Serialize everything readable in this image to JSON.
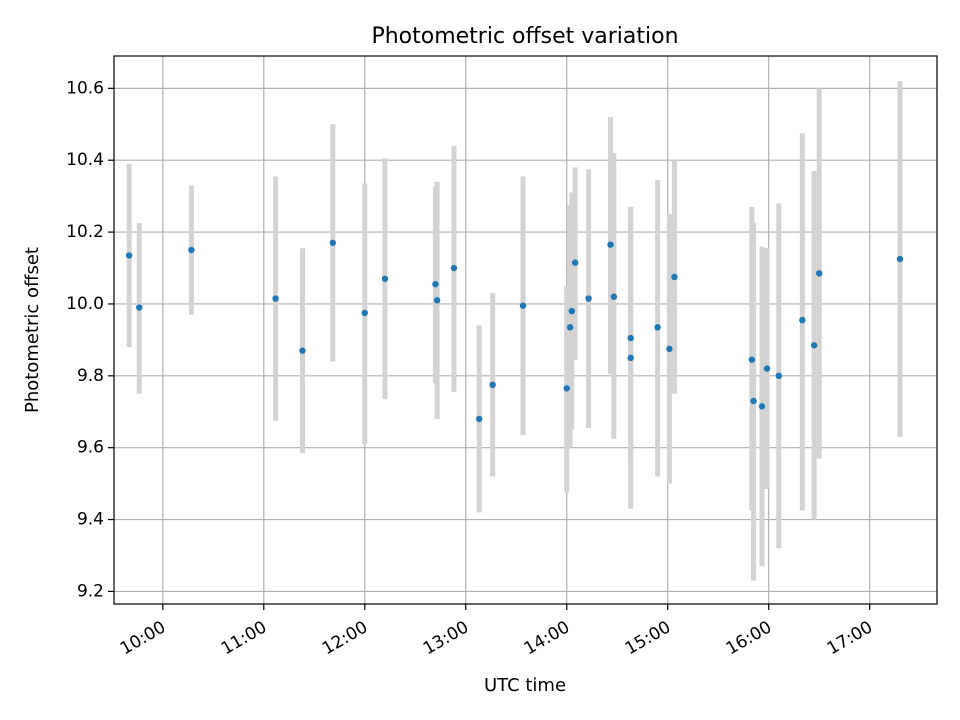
{
  "chart_data": {
    "type": "scatter",
    "title": "Photometric offset variation",
    "xlabel": "UTC time",
    "ylabel": "Photometric offset",
    "xlim": [
      "09:31",
      "17:40"
    ],
    "ylim": [
      9.165,
      10.69
    ],
    "x_ticks": [
      "10:00",
      "11:00",
      "12:00",
      "13:00",
      "14:00",
      "15:00",
      "16:00",
      "17:00"
    ],
    "y_ticks": [
      "9.2",
      "9.4",
      "9.6",
      "9.8",
      "10.0",
      "10.2",
      "10.4",
      "10.6"
    ],
    "grid": true,
    "colors": {
      "point": "#1f77b4",
      "errorbar": "#d3d3d3"
    },
    "points": [
      {
        "x": "09:40",
        "y": 10.135,
        "yerr_low": 9.88,
        "yerr_high": 10.39
      },
      {
        "x": "09:46",
        "y": 9.99,
        "yerr_low": 9.75,
        "yerr_high": 10.225
      },
      {
        "x": "10:17",
        "y": 10.15,
        "yerr_low": 9.97,
        "yerr_high": 10.33
      },
      {
        "x": "11:07",
        "y": 10.015,
        "yerr_low": 9.675,
        "yerr_high": 10.355
      },
      {
        "x": "11:23",
        "y": 9.87,
        "yerr_low": 9.585,
        "yerr_high": 10.155
      },
      {
        "x": "11:41",
        "y": 10.17,
        "yerr_low": 9.84,
        "yerr_high": 10.5
      },
      {
        "x": "12:00",
        "y": 9.975,
        "yerr_low": 9.61,
        "yerr_high": 10.335
      },
      {
        "x": "12:12",
        "y": 10.07,
        "yerr_low": 9.735,
        "yerr_high": 10.405
      },
      {
        "x": "12:42",
        "y": 10.055,
        "yerr_low": 9.78,
        "yerr_high": 10.325
      },
      {
        "x": "12:43",
        "y": 10.01,
        "yerr_low": 9.68,
        "yerr_high": 10.34
      },
      {
        "x": "12:53",
        "y": 10.1,
        "yerr_low": 9.755,
        "yerr_high": 10.44
      },
      {
        "x": "13:08",
        "y": 9.68,
        "yerr_low": 9.42,
        "yerr_high": 9.94
      },
      {
        "x": "13:16",
        "y": 9.775,
        "yerr_low": 9.52,
        "yerr_high": 10.03
      },
      {
        "x": "13:34",
        "y": 9.995,
        "yerr_low": 9.635,
        "yerr_high": 10.355
      },
      {
        "x": "14:00",
        "y": 9.765,
        "yerr_low": 9.475,
        "yerr_high": 10.05
      },
      {
        "x": "14:02",
        "y": 9.935,
        "yerr_low": 9.6,
        "yerr_high": 10.275
      },
      {
        "x": "14:03",
        "y": 9.98,
        "yerr_low": 9.65,
        "yerr_high": 10.31
      },
      {
        "x": "14:05",
        "y": 10.115,
        "yerr_low": 9.845,
        "yerr_high": 10.38
      },
      {
        "x": "14:13",
        "y": 10.015,
        "yerr_low": 9.655,
        "yerr_high": 10.375
      },
      {
        "x": "14:26",
        "y": 10.165,
        "yerr_low": 9.805,
        "yerr_high": 10.52
      },
      {
        "x": "14:28",
        "y": 10.02,
        "yerr_low": 9.625,
        "yerr_high": 10.42
      },
      {
        "x": "14:38",
        "y": 9.905,
        "yerr_low": 9.54,
        "yerr_high": 10.27
      },
      {
        "x": "14:38",
        "y": 9.85,
        "yerr_low": 9.43,
        "yerr_high": 10.27
      },
      {
        "x": "14:54",
        "y": 9.935,
        "yerr_low": 9.52,
        "yerr_high": 10.345
      },
      {
        "x": "15:01",
        "y": 9.875,
        "yerr_low": 9.5,
        "yerr_high": 10.25
      },
      {
        "x": "15:04",
        "y": 10.075,
        "yerr_low": 9.75,
        "yerr_high": 10.4
      },
      {
        "x": "15:50",
        "y": 9.845,
        "yerr_low": 9.425,
        "yerr_high": 10.27
      },
      {
        "x": "15:51",
        "y": 9.73,
        "yerr_low": 9.23,
        "yerr_high": 10.225
      },
      {
        "x": "15:56",
        "y": 9.715,
        "yerr_low": 9.27,
        "yerr_high": 10.16
      },
      {
        "x": "15:59",
        "y": 9.82,
        "yerr_low": 9.485,
        "yerr_high": 10.155
      },
      {
        "x": "16:06",
        "y": 9.8,
        "yerr_low": 9.32,
        "yerr_high": 10.28
      },
      {
        "x": "16:20",
        "y": 9.955,
        "yerr_low": 9.425,
        "yerr_high": 10.475
      },
      {
        "x": "16:27",
        "y": 9.885,
        "yerr_low": 9.4,
        "yerr_high": 10.37
      },
      {
        "x": "16:30",
        "y": 10.085,
        "yerr_low": 9.57,
        "yerr_high": 10.6
      },
      {
        "x": "17:18",
        "y": 10.125,
        "yerr_low": 9.63,
        "yerr_high": 10.62
      }
    ]
  }
}
